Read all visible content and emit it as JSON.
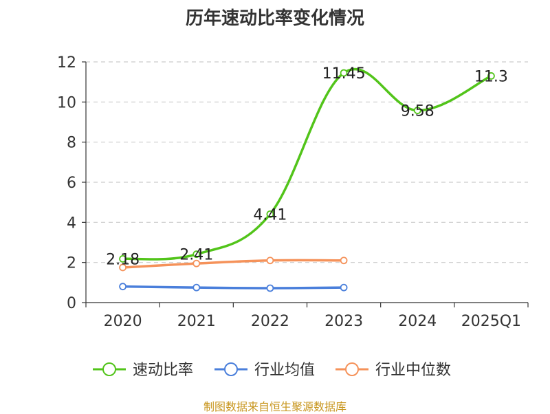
{
  "title": "历年速动比率变化情况",
  "source": "制图数据来自恒生聚源数据库",
  "chart_data": {
    "type": "line",
    "title": "历年速动比率变化情况",
    "categories": [
      "2020",
      "2021",
      "2022",
      "2023",
      "2024",
      "2025Q1"
    ],
    "ylim": [
      0,
      12
    ],
    "yticks": [
      0,
      2,
      4,
      6,
      8,
      10,
      12
    ],
    "grid": true,
    "legend_position": "bottom",
    "series": [
      {
        "name": "速动比率",
        "color": "#52c41a",
        "values": [
          2.18,
          2.41,
          4.41,
          11.45,
          9.58,
          11.3
        ],
        "labels": [
          "2.18",
          "2.41",
          "4.41",
          "11.45",
          "9.58",
          "11.3"
        ]
      },
      {
        "name": "行业均值",
        "color": "#4a7fdb",
        "values": [
          0.8,
          0.75,
          0.72,
          0.75,
          null,
          null
        ]
      },
      {
        "name": "行业中位数",
        "color": "#f5925a",
        "values": [
          1.75,
          1.95,
          2.1,
          2.1,
          null,
          null
        ]
      }
    ]
  }
}
